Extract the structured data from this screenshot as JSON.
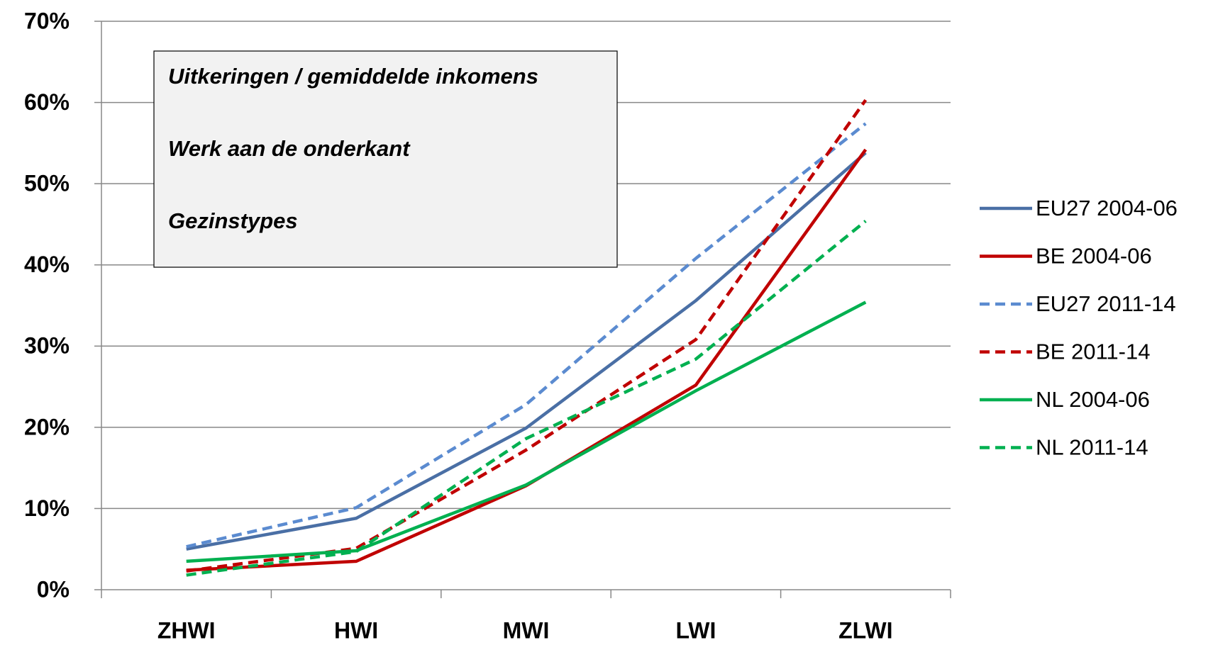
{
  "chart_data": {
    "type": "line",
    "categories": [
      "ZHWI",
      "HWI",
      "MWI",
      "LWI",
      "ZLWI"
    ],
    "series": [
      {
        "name": "EU27 2004-06",
        "color": "#4a6fa5",
        "dashed": false,
        "values": [
          5.0,
          8.8,
          19.9,
          35.6,
          53.8
        ]
      },
      {
        "name": "BE 2004-06",
        "color": "#c00000",
        "dashed": false,
        "values": [
          2.4,
          3.5,
          12.8,
          25.2,
          54.2
        ]
      },
      {
        "name": "EU27 2011-14",
        "color": "#5b8bd0",
        "dashed": true,
        "values": [
          5.3,
          10.1,
          22.8,
          40.8,
          57.4
        ]
      },
      {
        "name": "BE 2011-14",
        "color": "#c00000",
        "dashed": true,
        "values": [
          2.3,
          5.1,
          17.2,
          30.8,
          60.3
        ]
      },
      {
        "name": "NL 2004-06",
        "color": "#00b050",
        "dashed": false,
        "values": [
          3.5,
          4.8,
          12.9,
          24.5,
          35.4
        ]
      },
      {
        "name": "NL 2011-14",
        "color": "#00b050",
        "dashed": true,
        "values": [
          1.8,
          4.7,
          18.6,
          28.4,
          45.4
        ]
      }
    ],
    "ylim": [
      0,
      70
    ],
    "yticks": [
      {
        "value": 0,
        "label": "0%"
      },
      {
        "value": 10,
        "label": "10%"
      },
      {
        "value": 20,
        "label": "20%"
      },
      {
        "value": 30,
        "label": "30%"
      },
      {
        "value": 40,
        "label": "40%"
      },
      {
        "value": 50,
        "label": "50%"
      },
      {
        "value": 60,
        "label": "60%"
      },
      {
        "value": 70,
        "label": "70%"
      }
    ],
    "grid": true,
    "legend": "right",
    "annotations": [
      "Uitkeringen / gemiddelde inkomens",
      "Werk aan de onderkant",
      "Gezinstypes"
    ]
  }
}
